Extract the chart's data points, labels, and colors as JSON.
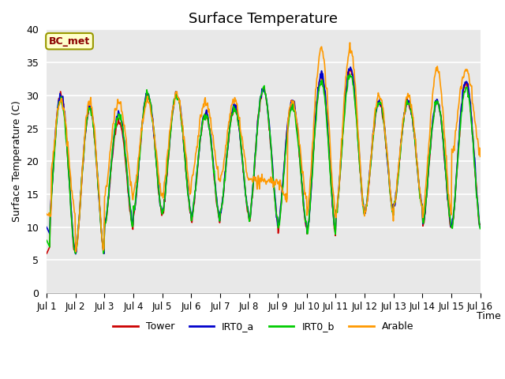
{
  "title": "Surface Temperature",
  "ylabel": "Surface Temperature (C)",
  "xlabel": "Time",
  "annotation": "BC_met",
  "ylim": [
    0,
    40
  ],
  "yticks": [
    0,
    5,
    10,
    15,
    20,
    25,
    30,
    35,
    40
  ],
  "xtick_labels": [
    "Jul 1",
    "Jul 2",
    "Jul 3",
    "Jul 4",
    "Jul 5",
    "Jul 6",
    "Jul 7",
    "Jul 8",
    "Jul 9",
    "Jul 10",
    "Jul 11",
    "Jul 12",
    "Jul 13",
    "Jul 14",
    "Jul 15",
    "Jul 16"
  ],
  "colors": {
    "Tower": "#cc0000",
    "IRT0_a": "#0000cc",
    "IRT0_b": "#00cc00",
    "Arable": "#ff9900"
  },
  "bg_color": "#e8e8e8",
  "title_fontsize": 13,
  "day_peaks_tower": [
    30,
    28,
    26,
    30,
    30,
    27,
    28,
    31,
    29,
    33,
    34,
    29,
    29,
    29,
    32
  ],
  "day_troughs_tower": [
    6,
    6,
    10,
    12,
    12,
    11,
    12,
    11,
    10,
    9,
    12,
    12,
    13,
    10,
    10
  ],
  "day_peaks_irta": [
    30,
    28,
    27,
    30,
    30,
    27,
    28,
    31,
    29,
    33,
    34,
    29,
    29,
    29,
    32
  ],
  "day_troughs_irta": [
    6,
    6,
    10,
    12,
    12,
    11,
    12,
    11,
    10,
    9,
    12,
    12,
    13,
    10,
    10
  ],
  "day_peaks_irtb": [
    29,
    28,
    27,
    30,
    30,
    27,
    28,
    31,
    28,
    32,
    33,
    29,
    29,
    29,
    31
  ],
  "day_troughs_irtb": [
    6,
    6,
    10,
    12,
    12,
    11,
    12,
    11,
    10,
    9,
    12,
    12,
    13,
    10,
    10
  ],
  "day_peaks_arable": [
    29,
    29,
    29,
    29,
    30,
    29,
    29,
    17,
    29,
    37,
    37,
    30,
    30,
    34,
    34
  ],
  "day_troughs_arable": [
    12,
    6,
    15,
    15,
    15,
    17,
    17,
    17,
    14,
    12,
    12,
    12,
    13,
    12,
    21
  ],
  "pts_per_day": 48,
  "n_days": 15
}
